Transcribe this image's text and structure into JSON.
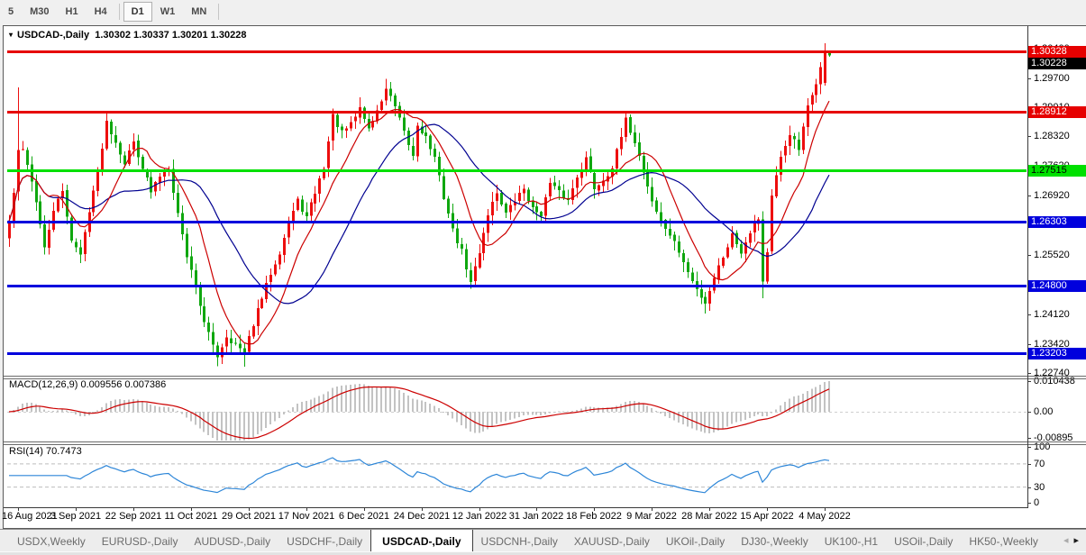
{
  "toolbar": {
    "items": [
      {
        "label": "5",
        "active": false,
        "divider_after": false
      },
      {
        "label": "M30",
        "active": false,
        "divider_after": false
      },
      {
        "label": "H1",
        "active": false,
        "divider_after": false
      },
      {
        "label": "H4",
        "active": false,
        "divider_after": true
      },
      {
        "label": "D1",
        "active": true,
        "divider_after": false
      },
      {
        "label": "W1",
        "active": false,
        "divider_after": false
      },
      {
        "label": "MN",
        "active": false,
        "divider_after": true
      }
    ]
  },
  "chart": {
    "title_symbol": "USDCAD-,Daily",
    "title_ohlc": "1.30302 1.30337 1.30201 1.30228",
    "dropdown_icon": "▾"
  },
  "macd": {
    "label": "MACD(12,26,9) 0.009556 0.007386",
    "ticks": [
      {
        "value": 0.010438,
        "label": "0.010438"
      },
      {
        "value": 0,
        "label": "0.00"
      },
      {
        "value": -0.00895,
        "label": "-0.00895"
      }
    ]
  },
  "rsi": {
    "label": "RSI(14) 70.7473",
    "ticks": [
      {
        "value": 100,
        "label": "100"
      },
      {
        "value": 70,
        "label": "70"
      },
      {
        "value": 30,
        "label": "30"
      },
      {
        "value": 0,
        "label": "0"
      }
    ],
    "level_lines": [
      70,
      30
    ]
  },
  "tabs": {
    "items": [
      "USDX,Weekly",
      "EURUSD-,Daily",
      "AUDUSD-,Daily",
      "USDCHF-,Daily",
      "USDCAD-,Daily",
      "USDCNH-,Daily",
      "XAUUSD-,Daily",
      "UKOil-,Daily",
      "DJ30-,Weekly",
      "UK100-,H1",
      "USOil-,Daily",
      "HK50-,Weekly"
    ],
    "active_index": 4,
    "scroll_left": "◂",
    "scroll_right": "▸"
  },
  "chart_data": {
    "type": "candlestick",
    "symbol": "USDCAD-",
    "timeframe": "Daily",
    "last_bar": {
      "open": 1.30302,
      "high": 1.30337,
      "low": 1.30201,
      "close": 1.30228
    },
    "current_price": 1.30228,
    "levels": [
      {
        "price": 1.30328,
        "color": "red"
      },
      {
        "price": 1.28912,
        "color": "red"
      },
      {
        "price": 1.27515,
        "color": "green"
      },
      {
        "price": 1.26303,
        "color": "blue"
      },
      {
        "price": 1.248,
        "color": "blue"
      },
      {
        "price": 1.23203,
        "color": "blue"
      }
    ],
    "price_axis_ticks": [
      1.304,
      1.297,
      1.2901,
      1.2832,
      1.2762,
      1.2692,
      1.2622,
      1.2552,
      1.2482,
      1.2412,
      1.2342,
      1.2274
    ],
    "date_ticks": [
      {
        "label": "16 Aug 2021",
        "bar": 2
      },
      {
        "label": "3 Sep 2021",
        "bar": 15
      },
      {
        "label": "22 Sep 2021",
        "bar": 28
      },
      {
        "label": "11 Oct 2021",
        "bar": 41
      },
      {
        "label": "29 Oct 2021",
        "bar": 54
      },
      {
        "label": "17 Nov 2021",
        "bar": 67
      },
      {
        "label": "6 Dec 2021",
        "bar": 80
      },
      {
        "label": "24 Dec 2021",
        "bar": 93
      },
      {
        "label": "12 Jan 2022",
        "bar": 106
      },
      {
        "label": "31 Jan 2022",
        "bar": 119
      },
      {
        "label": "18 Feb 2022",
        "bar": 132
      },
      {
        "label": "9 Mar 2022",
        "bar": 145
      },
      {
        "label": "28 Mar 2022",
        "bar": 158
      },
      {
        "label": "15 Apr 2022",
        "bar": 171
      },
      {
        "label": "4 May 2022",
        "bar": 184
      }
    ],
    "num_bars": 186,
    "seed": 42,
    "noise": 0.0014,
    "close_path_anchors": [
      [
        0,
        1.263
      ],
      [
        1,
        1.27
      ],
      [
        2,
        1.2795
      ],
      [
        3,
        1.28
      ],
      [
        4,
        1.277
      ],
      [
        6,
        1.268
      ],
      [
        8,
        1.2565
      ],
      [
        10,
        1.266
      ],
      [
        12,
        1.27
      ],
      [
        14,
        1.259
      ],
      [
        16,
        1.255
      ],
      [
        18,
        1.266
      ],
      [
        20,
        1.275
      ],
      [
        22,
        1.2868
      ],
      [
        24,
        1.282
      ],
      [
        26,
        1.277
      ],
      [
        28,
        1.282
      ],
      [
        30,
        1.276
      ],
      [
        32,
        1.27
      ],
      [
        34,
        1.274
      ],
      [
        36,
        1.276
      ],
      [
        38,
        1.265
      ],
      [
        40,
        1.255
      ],
      [
        42,
        1.248
      ],
      [
        44,
        1.239
      ],
      [
        46,
        1.234
      ],
      [
        47,
        1.2315
      ],
      [
        49,
        1.236
      ],
      [
        51,
        1.234
      ],
      [
        53,
        1.232
      ],
      [
        55,
        1.239
      ],
      [
        57,
        1.245
      ],
      [
        59,
        1.251
      ],
      [
        61,
        1.256
      ],
      [
        63,
        1.263
      ],
      [
        65,
        1.268
      ],
      [
        67,
        1.264
      ],
      [
        69,
        1.27
      ],
      [
        71,
        1.276
      ],
      [
        73,
        1.288
      ],
      [
        75,
        1.284
      ],
      [
        77,
        1.286
      ],
      [
        79,
        1.29
      ],
      [
        81,
        1.285
      ],
      [
        83,
        1.289
      ],
      [
        85,
        1.2945
      ],
      [
        87,
        1.29
      ],
      [
        89,
        1.284
      ],
      [
        91,
        1.2785
      ],
      [
        92,
        1.286
      ],
      [
        94,
        1.283
      ],
      [
        96,
        1.278
      ],
      [
        98,
        1.269
      ],
      [
        100,
        1.261
      ],
      [
        102,
        1.256
      ],
      [
        104,
        1.2485
      ],
      [
        106,
        1.256
      ],
      [
        108,
        1.265
      ],
      [
        110,
        1.27
      ],
      [
        112,
        1.265
      ],
      [
        114,
        1.268
      ],
      [
        116,
        1.271
      ],
      [
        118,
        1.266
      ],
      [
        120,
        1.265
      ],
      [
        122,
        1.272
      ],
      [
        124,
        1.27
      ],
      [
        126,
        1.268
      ],
      [
        128,
        1.274
      ],
      [
        130,
        1.278
      ],
      [
        132,
        1.271
      ],
      [
        134,
        1.273
      ],
      [
        136,
        1.276
      ],
      [
        138,
        1.283
      ],
      [
        139,
        1.287
      ],
      [
        141,
        1.282
      ],
      [
        143,
        1.275
      ],
      [
        145,
        1.268
      ],
      [
        147,
        1.263
      ],
      [
        149,
        1.26
      ],
      [
        151,
        1.256
      ],
      [
        153,
        1.251
      ],
      [
        155,
        1.247
      ],
      [
        157,
        1.244
      ],
      [
        159,
        1.25
      ],
      [
        161,
        1.255
      ],
      [
        163,
        1.26
      ],
      [
        165,
        1.256
      ],
      [
        167,
        1.261
      ],
      [
        169,
        1.264
      ],
      [
        170,
        1.249
      ],
      [
        171,
        1.256
      ],
      [
        172,
        1.269
      ],
      [
        174,
        1.278
      ],
      [
        176,
        1.284
      ],
      [
        178,
        1.28
      ],
      [
        180,
        1.29
      ],
      [
        182,
        1.296
      ],
      [
        184,
        1.3032
      ],
      [
        185,
        1.30228
      ]
    ],
    "bar_overrides": {
      "2": {
        "high": 1.2948
      },
      "22": {
        "high": 1.2892
      },
      "47": {
        "low": 1.2289
      },
      "53": {
        "low": 1.2288
      },
      "85": {
        "high": 1.2968
      },
      "139": {
        "high": 1.289
      },
      "157": {
        "low": 1.2414
      },
      "170": {
        "low": 1.245
      },
      "184": {
        "open": 1.2958,
        "close": 1.3032,
        "high": 1.3052,
        "low": 1.2952
      },
      "185": {
        "open": 1.30302,
        "high": 1.30337,
        "low": 1.30201,
        "close": 1.30228
      }
    },
    "colors": {
      "up": "#ed0e0e",
      "down": "#0fa70f",
      "ma_fast": "#cc0000",
      "ma_slow": "#000090",
      "macd_histogram": "#c3c3c3",
      "macd_signal": "#cc0000",
      "rsi": "#2d86d8",
      "level_red": "#e60000",
      "level_green": "#00e000",
      "level_blue": "#0000dd",
      "current_price_bg": "#000000"
    },
    "indicators": [
      {
        "name": "MACD",
        "params": [
          12,
          26,
          9
        ],
        "last_main": 0.009556,
        "last_signal": 0.007386
      },
      {
        "name": "RSI",
        "params": [
          14
        ],
        "last": 70.7473
      }
    ]
  }
}
